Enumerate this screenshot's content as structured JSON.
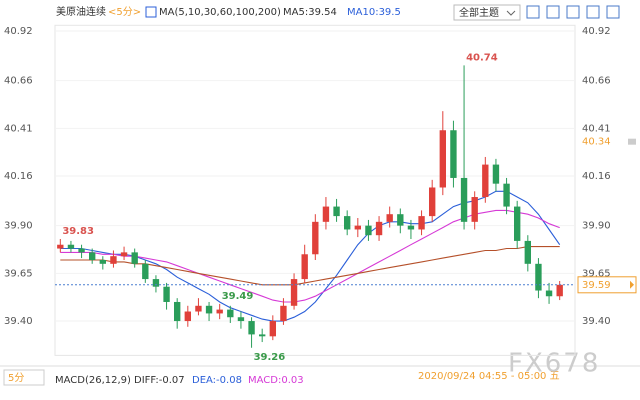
{
  "header": {
    "symbol": "美原油连续",
    "period": "<5分>",
    "ma_set": "MA(5,10,30,60,100,200)",
    "ma5": "MA5:39.54",
    "ma10": "MA10:39.5",
    "theme": "全部主题"
  },
  "footer": {
    "period": "5分",
    "macd": "MACD(26,12,9)",
    "diff": "DIFF:-0.07",
    "dea": "DEA:-0.08",
    "macd_value": "MACD:0.03",
    "time": "2020/09/24 04:55 - 05:00 五"
  },
  "watermark": "FX678",
  "chart_data": {
    "type": "candlestick",
    "ylim": [
      39.22,
      40.95
    ],
    "yticks": [
      40.92,
      40.66,
      40.41,
      40.16,
      {
        "value": 39.9,
        "label": "39.90"
      },
      39.65,
      {
        "value": 39.4,
        "label": "39.40"
      }
    ],
    "up_color": "#e0403a",
    "down_color": "#2a9d5a",
    "open": [
      39.78,
      39.8,
      39.78,
      39.76,
      39.72,
      39.7,
      39.74,
      39.76,
      39.7,
      39.62,
      39.58,
      39.5,
      39.4,
      39.45,
      39.48,
      39.44,
      39.46,
      39.42,
      39.4,
      39.33,
      39.32,
      39.4,
      39.48,
      39.62,
      39.75,
      39.92,
      40.0,
      39.95,
      39.88,
      39.9,
      39.85,
      39.92,
      39.96,
      39.9,
      39.88,
      39.95,
      40.1,
      40.4,
      40.15,
      39.92,
      40.05,
      40.22,
      40.12,
      40.0,
      39.82,
      39.7,
      39.56,
      39.53
    ],
    "high": [
      39.83,
      39.82,
      39.8,
      39.78,
      39.74,
      39.77,
      39.79,
      39.78,
      39.72,
      39.64,
      39.6,
      39.52,
      39.48,
      39.52,
      39.5,
      39.49,
      39.48,
      39.45,
      39.42,
      39.36,
      39.43,
      39.52,
      39.65,
      39.8,
      39.96,
      40.05,
      40.04,
      39.98,
      39.94,
      39.93,
      39.95,
      40.0,
      39.99,
      39.93,
      39.98,
      40.14,
      40.5,
      40.45,
      40.74,
      40.08,
      40.26,
      40.25,
      40.15,
      40.03,
      39.85,
      39.73,
      39.6,
      39.61
    ],
    "low": [
      39.76,
      39.76,
      39.73,
      39.7,
      39.67,
      39.68,
      39.72,
      39.68,
      39.6,
      39.55,
      39.46,
      39.36,
      39.37,
      39.43,
      39.4,
      39.41,
      39.39,
      39.36,
      39.26,
      39.29,
      39.3,
      39.38,
      39.46,
      39.6,
      39.72,
      39.88,
      39.92,
      39.85,
      39.84,
      39.82,
      39.82,
      39.89,
      39.86,
      39.83,
      39.85,
      39.92,
      40.06,
      40.1,
      39.88,
      39.88,
      40.02,
      40.08,
      39.96,
      39.78,
      39.66,
      39.52,
      39.49,
      39.51
    ],
    "close": [
      39.8,
      39.78,
      39.76,
      39.72,
      39.7,
      39.74,
      39.76,
      39.7,
      39.62,
      39.58,
      39.5,
      39.4,
      39.45,
      39.48,
      39.44,
      39.46,
      39.42,
      39.4,
      39.33,
      39.32,
      39.4,
      39.48,
      39.62,
      39.75,
      39.92,
      40.0,
      39.95,
      39.88,
      39.9,
      39.85,
      39.92,
      39.96,
      39.9,
      39.88,
      39.95,
      40.1,
      40.4,
      40.15,
      39.92,
      40.05,
      40.22,
      40.12,
      40.0,
      39.82,
      39.7,
      39.56,
      39.53,
      39.59
    ],
    "overlays": [
      {
        "color": "#2b5fd9",
        "values": [
          39.78,
          39.78,
          39.78,
          39.77,
          39.76,
          39.75,
          39.75,
          39.74,
          39.72,
          39.7,
          39.67,
          39.63,
          39.6,
          39.57,
          39.54,
          39.5,
          39.47,
          39.45,
          39.43,
          39.41,
          39.4,
          39.4,
          39.42,
          39.45,
          39.5,
          39.57,
          39.64,
          39.72,
          39.8,
          39.86,
          39.9,
          39.92,
          39.92,
          39.91,
          39.91,
          39.92,
          39.96,
          40.0,
          40.02,
          40.03,
          40.05,
          40.08,
          40.08,
          40.05,
          40.02,
          39.96,
          39.88,
          39.8
        ]
      },
      {
        "color": "#d63ad6",
        "values": [
          39.76,
          39.76,
          39.76,
          39.76,
          39.75,
          39.75,
          39.74,
          39.74,
          39.73,
          39.72,
          39.71,
          39.69,
          39.67,
          39.65,
          39.63,
          39.61,
          39.59,
          39.57,
          39.55,
          39.53,
          39.51,
          39.5,
          39.5,
          39.51,
          39.53,
          39.56,
          39.59,
          39.62,
          39.65,
          39.68,
          39.71,
          39.74,
          39.77,
          39.8,
          39.83,
          39.86,
          39.89,
          39.92,
          39.94,
          39.96,
          39.97,
          39.98,
          39.98,
          39.97,
          39.96,
          39.94,
          39.91,
          39.89
        ]
      },
      {
        "color": "#b5502a",
        "values": [
          39.72,
          39.72,
          39.72,
          39.72,
          39.72,
          39.71,
          39.71,
          39.7,
          39.7,
          39.69,
          39.68,
          39.67,
          39.66,
          39.65,
          39.64,
          39.63,
          39.62,
          39.61,
          39.6,
          39.59,
          39.59,
          39.59,
          39.59,
          39.6,
          39.61,
          39.62,
          39.63,
          39.64,
          39.65,
          39.66,
          39.67,
          39.68,
          39.69,
          39.7,
          39.71,
          39.72,
          39.73,
          39.74,
          39.75,
          39.76,
          39.77,
          39.77,
          39.78,
          39.78,
          39.79,
          39.79,
          39.79,
          39.79
        ]
      }
    ],
    "extreme_labels": [
      {
        "value": 40.74,
        "color": "#d9534f"
      },
      {
        "value": 39.83,
        "color": "#d9534f"
      },
      {
        "value": 39.26,
        "color": "#3a9a4a"
      },
      {
        "value": 39.49,
        "color": "#3a9a4a"
      }
    ],
    "last_price": 39.59,
    "last_color": "#f0a030",
    "level": 40.34,
    "level_color": "#f0a030"
  }
}
